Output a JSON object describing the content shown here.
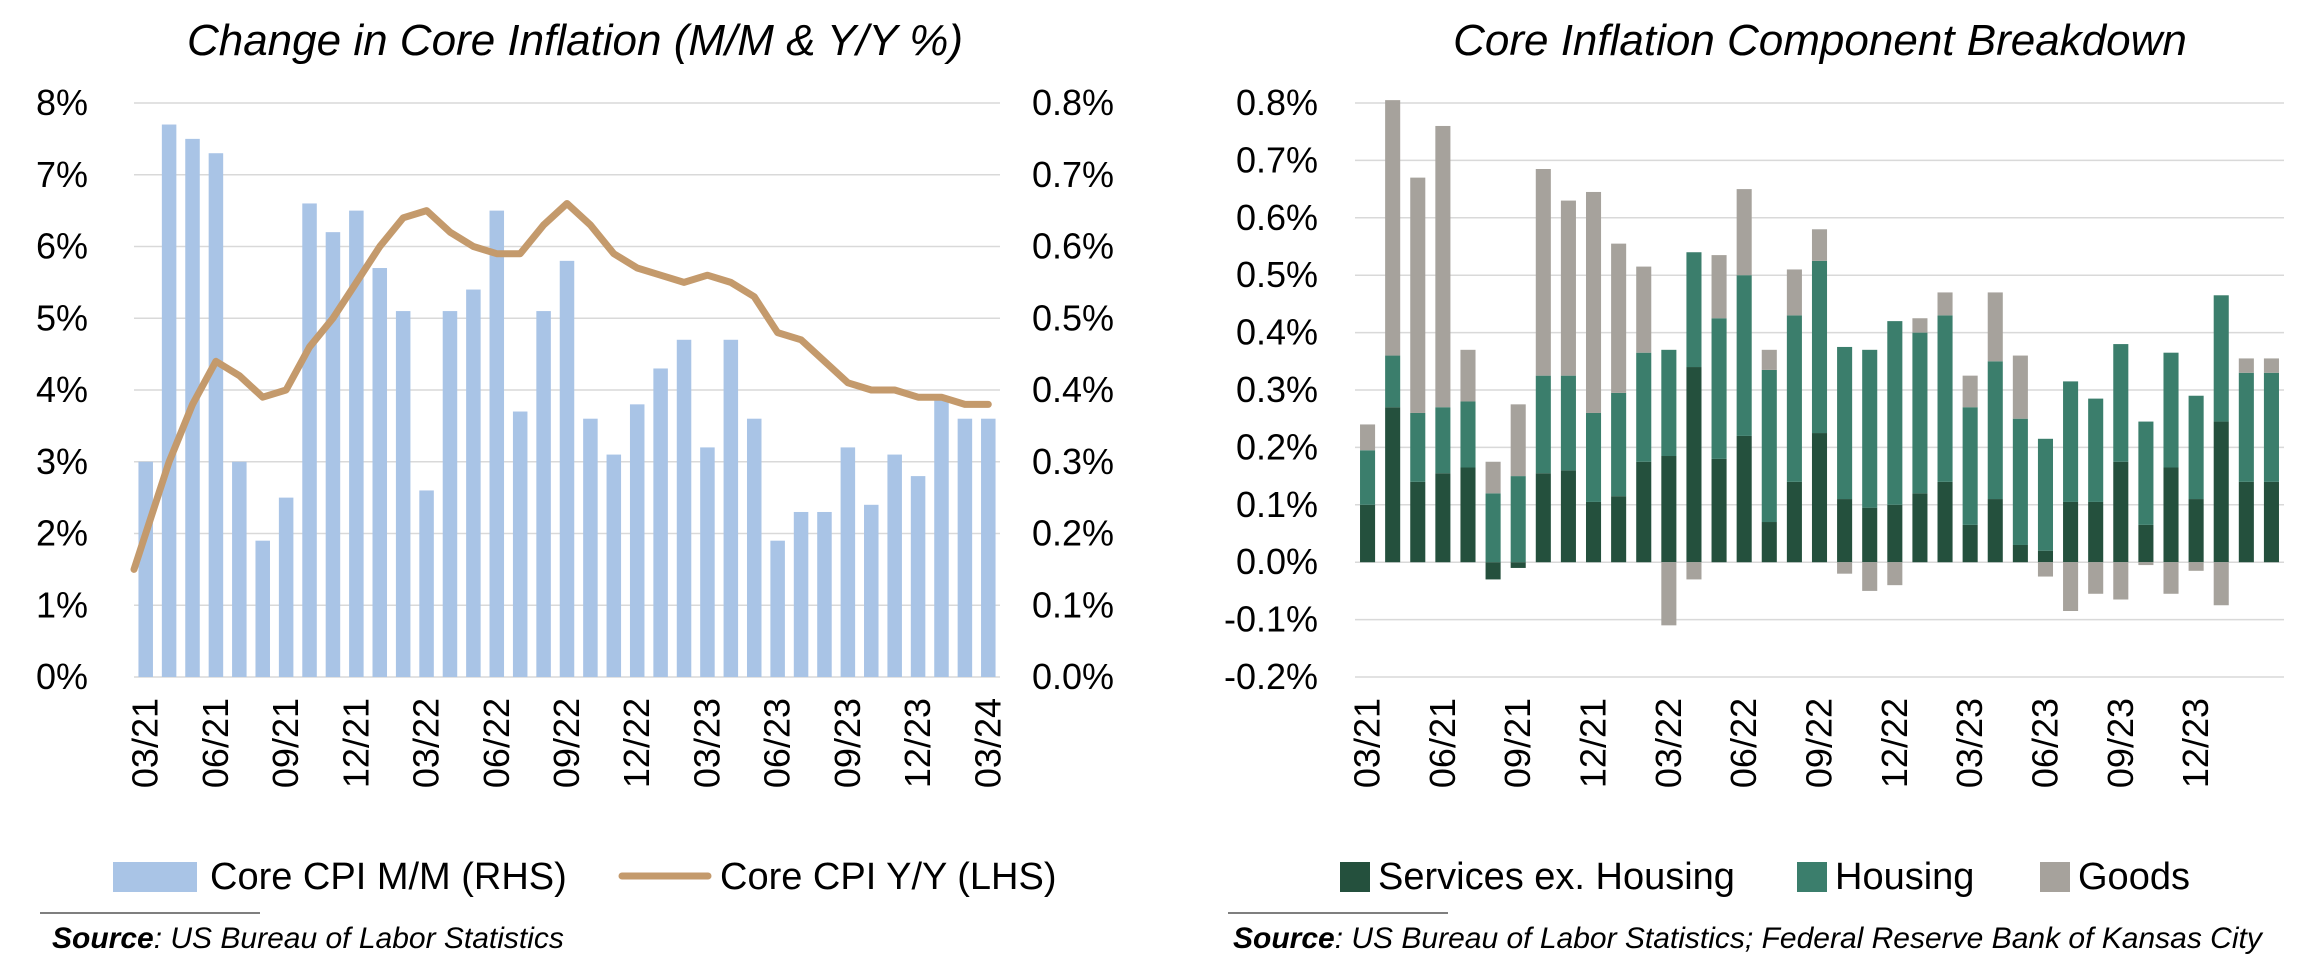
{
  "left_chart": {
    "title": "Change in Core Inflation (M/M & Y/Y %)",
    "legend": [
      "Core CPI M/M (RHS)",
      "Core CPI Y/Y (LHS)"
    ],
    "source_label": "Source",
    "source_text": ": US Bureau of Labor Statistics"
  },
  "right_chart": {
    "title": "Core Inflation Component Breakdown",
    "legend": [
      "Services ex. Housing",
      "Housing",
      "Goods"
    ],
    "source_label": "Source",
    "source_text": ": US Bureau of Labor Statistics; Federal Reserve Bank of Kansas City"
  },
  "colors": {
    "mm_bar": "#a9c4e6",
    "yy_line": "#c49a6c",
    "services": "#24503d",
    "housing": "#3b7e6c",
    "goods": "#a6a29c",
    "grid": "#d9d9d9"
  },
  "chart_data": [
    {
      "type": "bar",
      "title": "Change in Core Inflation (M/M & Y/Y %)",
      "xlabel": "",
      "x_tick_labels": [
        "03/21",
        "06/21",
        "09/21",
        "12/21",
        "03/22",
        "06/22",
        "09/22",
        "12/22",
        "03/23",
        "06/23",
        "09/23",
        "12/23",
        "03/24"
      ],
      "categories": [
        "03/21",
        "04/21",
        "05/21",
        "06/21",
        "07/21",
        "08/21",
        "09/21",
        "10/21",
        "11/21",
        "12/21",
        "01/22",
        "02/22",
        "03/22",
        "04/22",
        "05/22",
        "06/22",
        "07/22",
        "08/22",
        "09/22",
        "10/22",
        "11/22",
        "12/22",
        "01/23",
        "02/23",
        "03/23",
        "04/23",
        "05/23",
        "06/23",
        "07/23",
        "08/23",
        "09/23",
        "10/23",
        "11/23",
        "12/23",
        "01/24",
        "02/24",
        "03/24"
      ],
      "left_axis": {
        "ylim": [
          0,
          8
        ],
        "ticks": [
          "0%",
          "1%",
          "2%",
          "3%",
          "4%",
          "5%",
          "6%",
          "7%",
          "8%"
        ]
      },
      "right_axis": {
        "ylim": [
          0,
          0.8
        ],
        "ticks": [
          "0.0%",
          "0.1%",
          "0.2%",
          "0.3%",
          "0.4%",
          "0.5%",
          "0.6%",
          "0.7%",
          "0.8%"
        ]
      },
      "grid": true,
      "legend_position": "bottom",
      "series": [
        {
          "name": "Core CPI M/M (RHS)",
          "kind": "bar",
          "axis": "right",
          "values": [
            0.3,
            0.77,
            0.75,
            0.73,
            0.3,
            0.19,
            0.25,
            0.66,
            0.62,
            0.65,
            0.57,
            0.51,
            0.26,
            0.51,
            0.54,
            0.65,
            0.37,
            0.51,
            0.58,
            0.36,
            0.31,
            0.38,
            0.43,
            0.47,
            0.32,
            0.47,
            0.36,
            0.19,
            0.23,
            0.23,
            0.32,
            0.24,
            0.31,
            0.28,
            0.39,
            0.36,
            0.36
          ]
        },
        {
          "name": "Core CPI Y/Y (LHS)",
          "kind": "line",
          "axis": "left",
          "values": [
            1.5,
            3.0,
            3.8,
            4.4,
            4.2,
            3.9,
            4.0,
            4.6,
            5.0,
            5.5,
            6.0,
            6.4,
            6.5,
            6.2,
            6.0,
            5.9,
            5.9,
            6.3,
            6.6,
            6.3,
            5.9,
            5.7,
            5.6,
            5.5,
            5.6,
            5.5,
            5.3,
            4.8,
            4.7,
            4.4,
            4.1,
            4.0,
            4.0,
            3.9,
            3.9,
            3.8,
            3.8
          ]
        }
      ]
    },
    {
      "type": "bar",
      "stacked": true,
      "title": "Core Inflation Component Breakdown",
      "xlabel": "",
      "x_tick_labels": [
        "03/21",
        "06/21",
        "09/21",
        "12/21",
        "03/22",
        "06/22",
        "09/22",
        "12/22",
        "03/23",
        "06/23",
        "09/23",
        "12/23"
      ],
      "categories": [
        "03/21",
        "04/21",
        "05/21",
        "06/21",
        "07/21",
        "08/21",
        "09/21",
        "10/21",
        "11/21",
        "12/21",
        "01/22",
        "02/22",
        "03/22",
        "04/22",
        "05/22",
        "06/22",
        "07/22",
        "08/22",
        "09/22",
        "10/22",
        "11/22",
        "12/22",
        "01/23",
        "02/23",
        "03/23",
        "04/23",
        "05/23",
        "06/23",
        "07/23",
        "08/23",
        "09/23",
        "10/23",
        "11/23",
        "12/23",
        "01/24",
        "02/24",
        "03/24"
      ],
      "ylim": [
        -0.2,
        0.8
      ],
      "y_ticks": [
        "-0.2%",
        "-0.1%",
        "0.0%",
        "0.1%",
        "0.2%",
        "0.3%",
        "0.4%",
        "0.5%",
        "0.6%",
        "0.7%",
        "0.8%"
      ],
      "grid": true,
      "legend_position": "bottom",
      "series": [
        {
          "name": "Services ex. Housing",
          "values": [
            0.1,
            0.27,
            0.14,
            0.155,
            0.165,
            -0.03,
            -0.01,
            0.155,
            0.16,
            0.105,
            0.115,
            0.175,
            0.185,
            0.34,
            0.18,
            0.22,
            0.07,
            0.14,
            0.225,
            0.11,
            0.095,
            0.1,
            0.12,
            0.14,
            0.065,
            0.11,
            0.03,
            0.02,
            0.105,
            0.105,
            0.175,
            0.065,
            0.165,
            0.11,
            0.245,
            0.14,
            0.14
          ]
        },
        {
          "name": "Housing",
          "values": [
            0.095,
            0.09,
            0.12,
            0.115,
            0.115,
            0.12,
            0.15,
            0.17,
            0.165,
            0.155,
            0.18,
            0.19,
            0.185,
            0.2,
            0.245,
            0.28,
            0.265,
            0.29,
            0.3,
            0.265,
            0.275,
            0.32,
            0.28,
            0.29,
            0.205,
            0.24,
            0.22,
            0.195,
            0.21,
            0.18,
            0.205,
            0.18,
            0.2,
            0.18,
            0.22,
            0.19,
            0.19
          ]
        },
        {
          "name": "Goods",
          "values": [
            0.045,
            0.445,
            0.41,
            0.49,
            0.09,
            0.055,
            0.125,
            0.36,
            0.305,
            0.385,
            0.26,
            0.15,
            -0.11,
            -0.03,
            0.11,
            0.15,
            0.035,
            0.08,
            0.055,
            -0.02,
            -0.05,
            -0.04,
            0.025,
            0.04,
            0.055,
            0.12,
            0.11,
            -0.025,
            -0.085,
            -0.055,
            -0.065,
            -0.005,
            -0.055,
            -0.015,
            -0.075,
            0.025,
            0.025
          ]
        }
      ]
    }
  ]
}
